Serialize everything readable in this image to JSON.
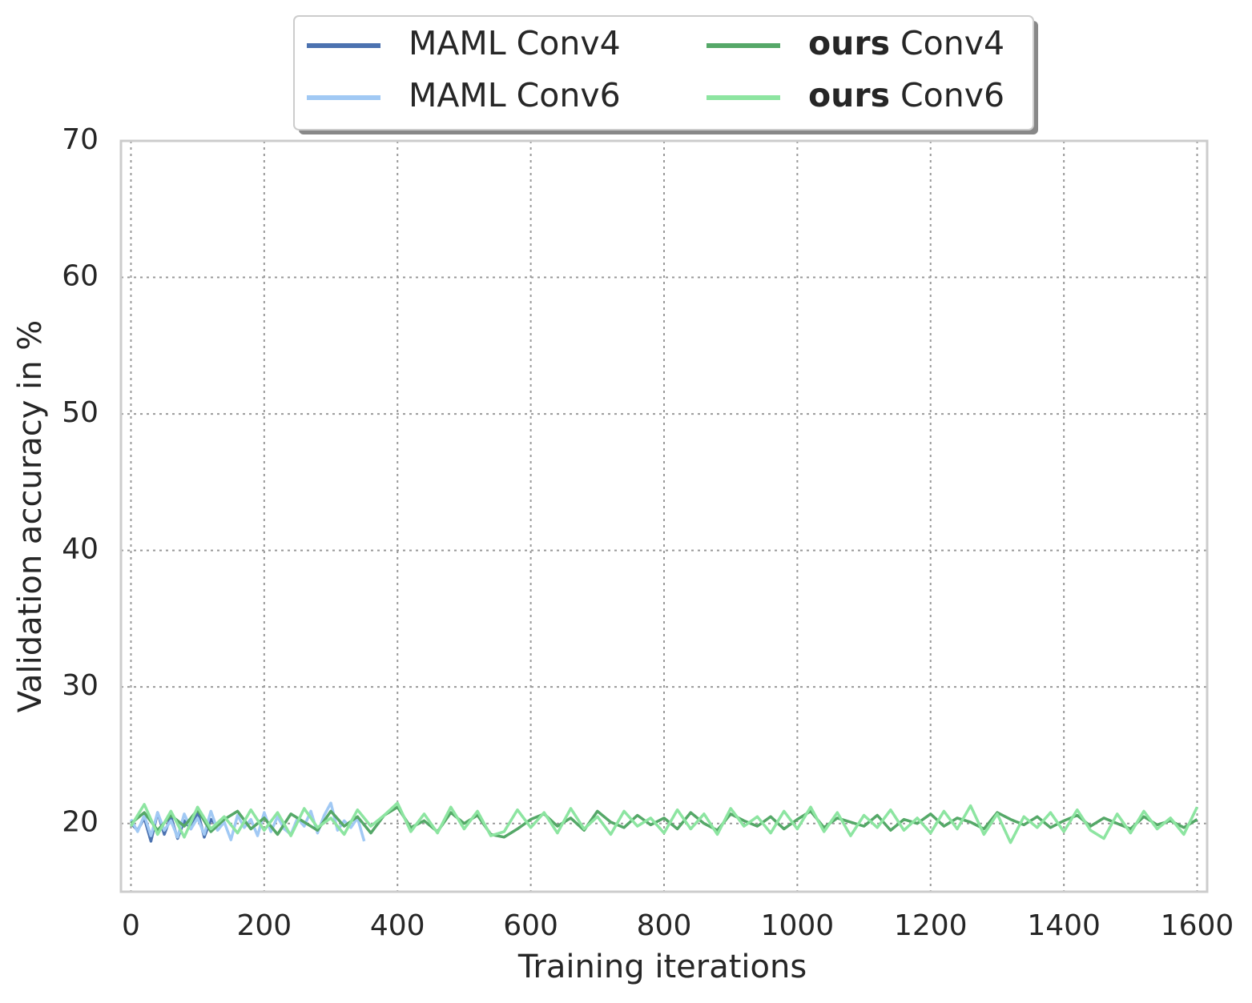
{
  "chart_data": {
    "type": "line",
    "xlabel": "Training iterations",
    "ylabel": "Validation accuracy in %",
    "xlim": [
      -15,
      1615
    ],
    "ylim": [
      15,
      70
    ],
    "xticks": [
      0,
      200,
      400,
      600,
      800,
      1000,
      1200,
      1400,
      1600
    ],
    "yticks": [
      20,
      30,
      40,
      50,
      60,
      70
    ],
    "grid": true,
    "legend": "upper center",
    "series": [
      {
        "name": "MAML Conv4",
        "color": "#4c72b0",
        "legend_bold_first_word": false,
        "x": [
          0,
          10,
          20,
          30,
          40,
          50,
          60,
          70,
          80,
          90,
          100,
          110,
          120,
          130
        ],
        "values": [
          20.0,
          19.5,
          20.4,
          18.7,
          20.8,
          19.2,
          20.5,
          18.9,
          20.2,
          19.6,
          20.9,
          19.0,
          20.3,
          19.8
        ]
      },
      {
        "name": "MAML Conv6",
        "color": "#a1c9f4",
        "legend_bold_first_word": false,
        "x": [
          0,
          10,
          20,
          30,
          40,
          50,
          60,
          70,
          80,
          90,
          100,
          110,
          120,
          130,
          140,
          150,
          160,
          170,
          180,
          190,
          200,
          210,
          220,
          230,
          240,
          250,
          260,
          270,
          280,
          290,
          300,
          310,
          320,
          330,
          340,
          350
        ],
        "values": [
          20.3,
          19.4,
          20.6,
          19.1,
          20.8,
          19.5,
          20.2,
          19.0,
          20.7,
          19.6,
          20.4,
          19.2,
          20.9,
          19.5,
          20.1,
          18.8,
          20.6,
          19.7,
          20.3,
          19.1,
          20.8,
          19.4,
          20.5,
          19.6,
          19.2,
          20.4,
          19.8,
          20.9,
          19.3,
          20.6,
          21.5,
          19.5,
          20.2,
          19.7,
          20.4,
          18.7
        ]
      },
      {
        "name": "ours Conv4",
        "color": "#55a868",
        "legend_bold_first_word": true,
        "x": [
          0,
          20,
          40,
          60,
          80,
          100,
          120,
          140,
          160,
          180,
          200,
          220,
          240,
          260,
          280,
          300,
          320,
          340,
          360,
          380,
          400,
          420,
          440,
          460,
          480,
          500,
          520,
          540,
          560,
          580,
          600,
          620,
          640,
          660,
          680,
          700,
          720,
          740,
          760,
          780,
          800,
          820,
          840,
          860,
          880,
          900,
          920,
          940,
          960,
          980,
          1000,
          1020,
          1040,
          1060,
          1080,
          1100,
          1120,
          1140,
          1160,
          1180,
          1200,
          1220,
          1240,
          1260,
          1280,
          1300,
          1320,
          1340,
          1360,
          1380,
          1400,
          1420,
          1440,
          1460,
          1480,
          1500,
          1520,
          1540,
          1560,
          1580,
          1600
        ],
        "values": [
          20.0,
          20.8,
          19.5,
          20.6,
          19.8,
          21.0,
          19.4,
          20.3,
          20.9,
          19.6,
          20.4,
          19.2,
          20.7,
          20.1,
          19.5,
          20.9,
          19.8,
          20.5,
          19.3,
          20.6,
          21.2,
          19.7,
          20.2,
          19.4,
          20.8,
          20.0,
          20.6,
          19.2,
          19.0,
          19.6,
          20.3,
          20.7,
          19.8,
          20.4,
          19.5,
          20.9,
          20.1,
          19.7,
          20.6,
          19.9,
          20.4,
          19.6,
          20.8,
          20.0,
          19.5,
          20.7,
          20.2,
          19.8,
          20.5,
          19.6,
          20.3,
          20.9,
          19.7,
          20.4,
          20.1,
          19.8,
          20.6,
          19.5,
          20.3,
          20.0,
          20.7,
          19.8,
          20.4,
          20.1,
          19.6,
          20.8,
          20.3,
          19.9,
          20.5,
          19.7,
          20.2,
          20.6,
          19.8,
          20.4,
          20.0,
          19.6,
          20.5,
          19.9,
          20.2,
          19.7,
          20.3
        ]
      },
      {
        "name": "ours Conv6",
        "color": "#8de5a1",
        "legend_bold_first_word": true,
        "x": [
          0,
          20,
          40,
          60,
          80,
          100,
          120,
          140,
          160,
          180,
          200,
          220,
          240,
          260,
          280,
          300,
          320,
          340,
          360,
          380,
          400,
          420,
          440,
          460,
          480,
          500,
          520,
          540,
          560,
          580,
          600,
          620,
          640,
          660,
          680,
          700,
          720,
          740,
          760,
          780,
          800,
          820,
          840,
          860,
          880,
          900,
          920,
          940,
          960,
          980,
          1000,
          1020,
          1040,
          1060,
          1080,
          1100,
          1120,
          1140,
          1160,
          1180,
          1200,
          1220,
          1240,
          1260,
          1280,
          1300,
          1320,
          1340,
          1360,
          1380,
          1400,
          1420,
          1440,
          1460,
          1480,
          1500,
          1520,
          1540,
          1560,
          1580,
          1600
        ],
        "values": [
          19.8,
          21.4,
          19.2,
          20.9,
          19.0,
          21.2,
          19.6,
          20.5,
          19.3,
          21.0,
          19.5,
          20.8,
          19.1,
          21.1,
          19.7,
          20.4,
          19.2,
          21.0,
          19.8,
          20.6,
          21.5,
          19.4,
          20.7,
          19.3,
          21.2,
          19.6,
          20.9,
          19.1,
          19.4,
          21.0,
          19.7,
          20.8,
          19.3,
          21.1,
          19.6,
          20.5,
          19.2,
          20.9,
          19.8,
          20.4,
          19.3,
          21.0,
          19.6,
          20.7,
          19.2,
          21.1,
          19.8,
          20.5,
          19.3,
          20.9,
          19.6,
          21.2,
          19.4,
          20.8,
          19.1,
          20.6,
          19.7,
          21.0,
          19.5,
          20.4,
          19.3,
          20.9,
          19.6,
          21.3,
          19.2,
          20.7,
          18.6,
          20.5,
          19.7,
          20.8,
          19.4,
          21.0,
          19.5,
          18.9,
          20.7,
          19.3,
          20.9,
          19.6,
          20.4,
          19.2,
          21.2
        ]
      }
    ]
  }
}
